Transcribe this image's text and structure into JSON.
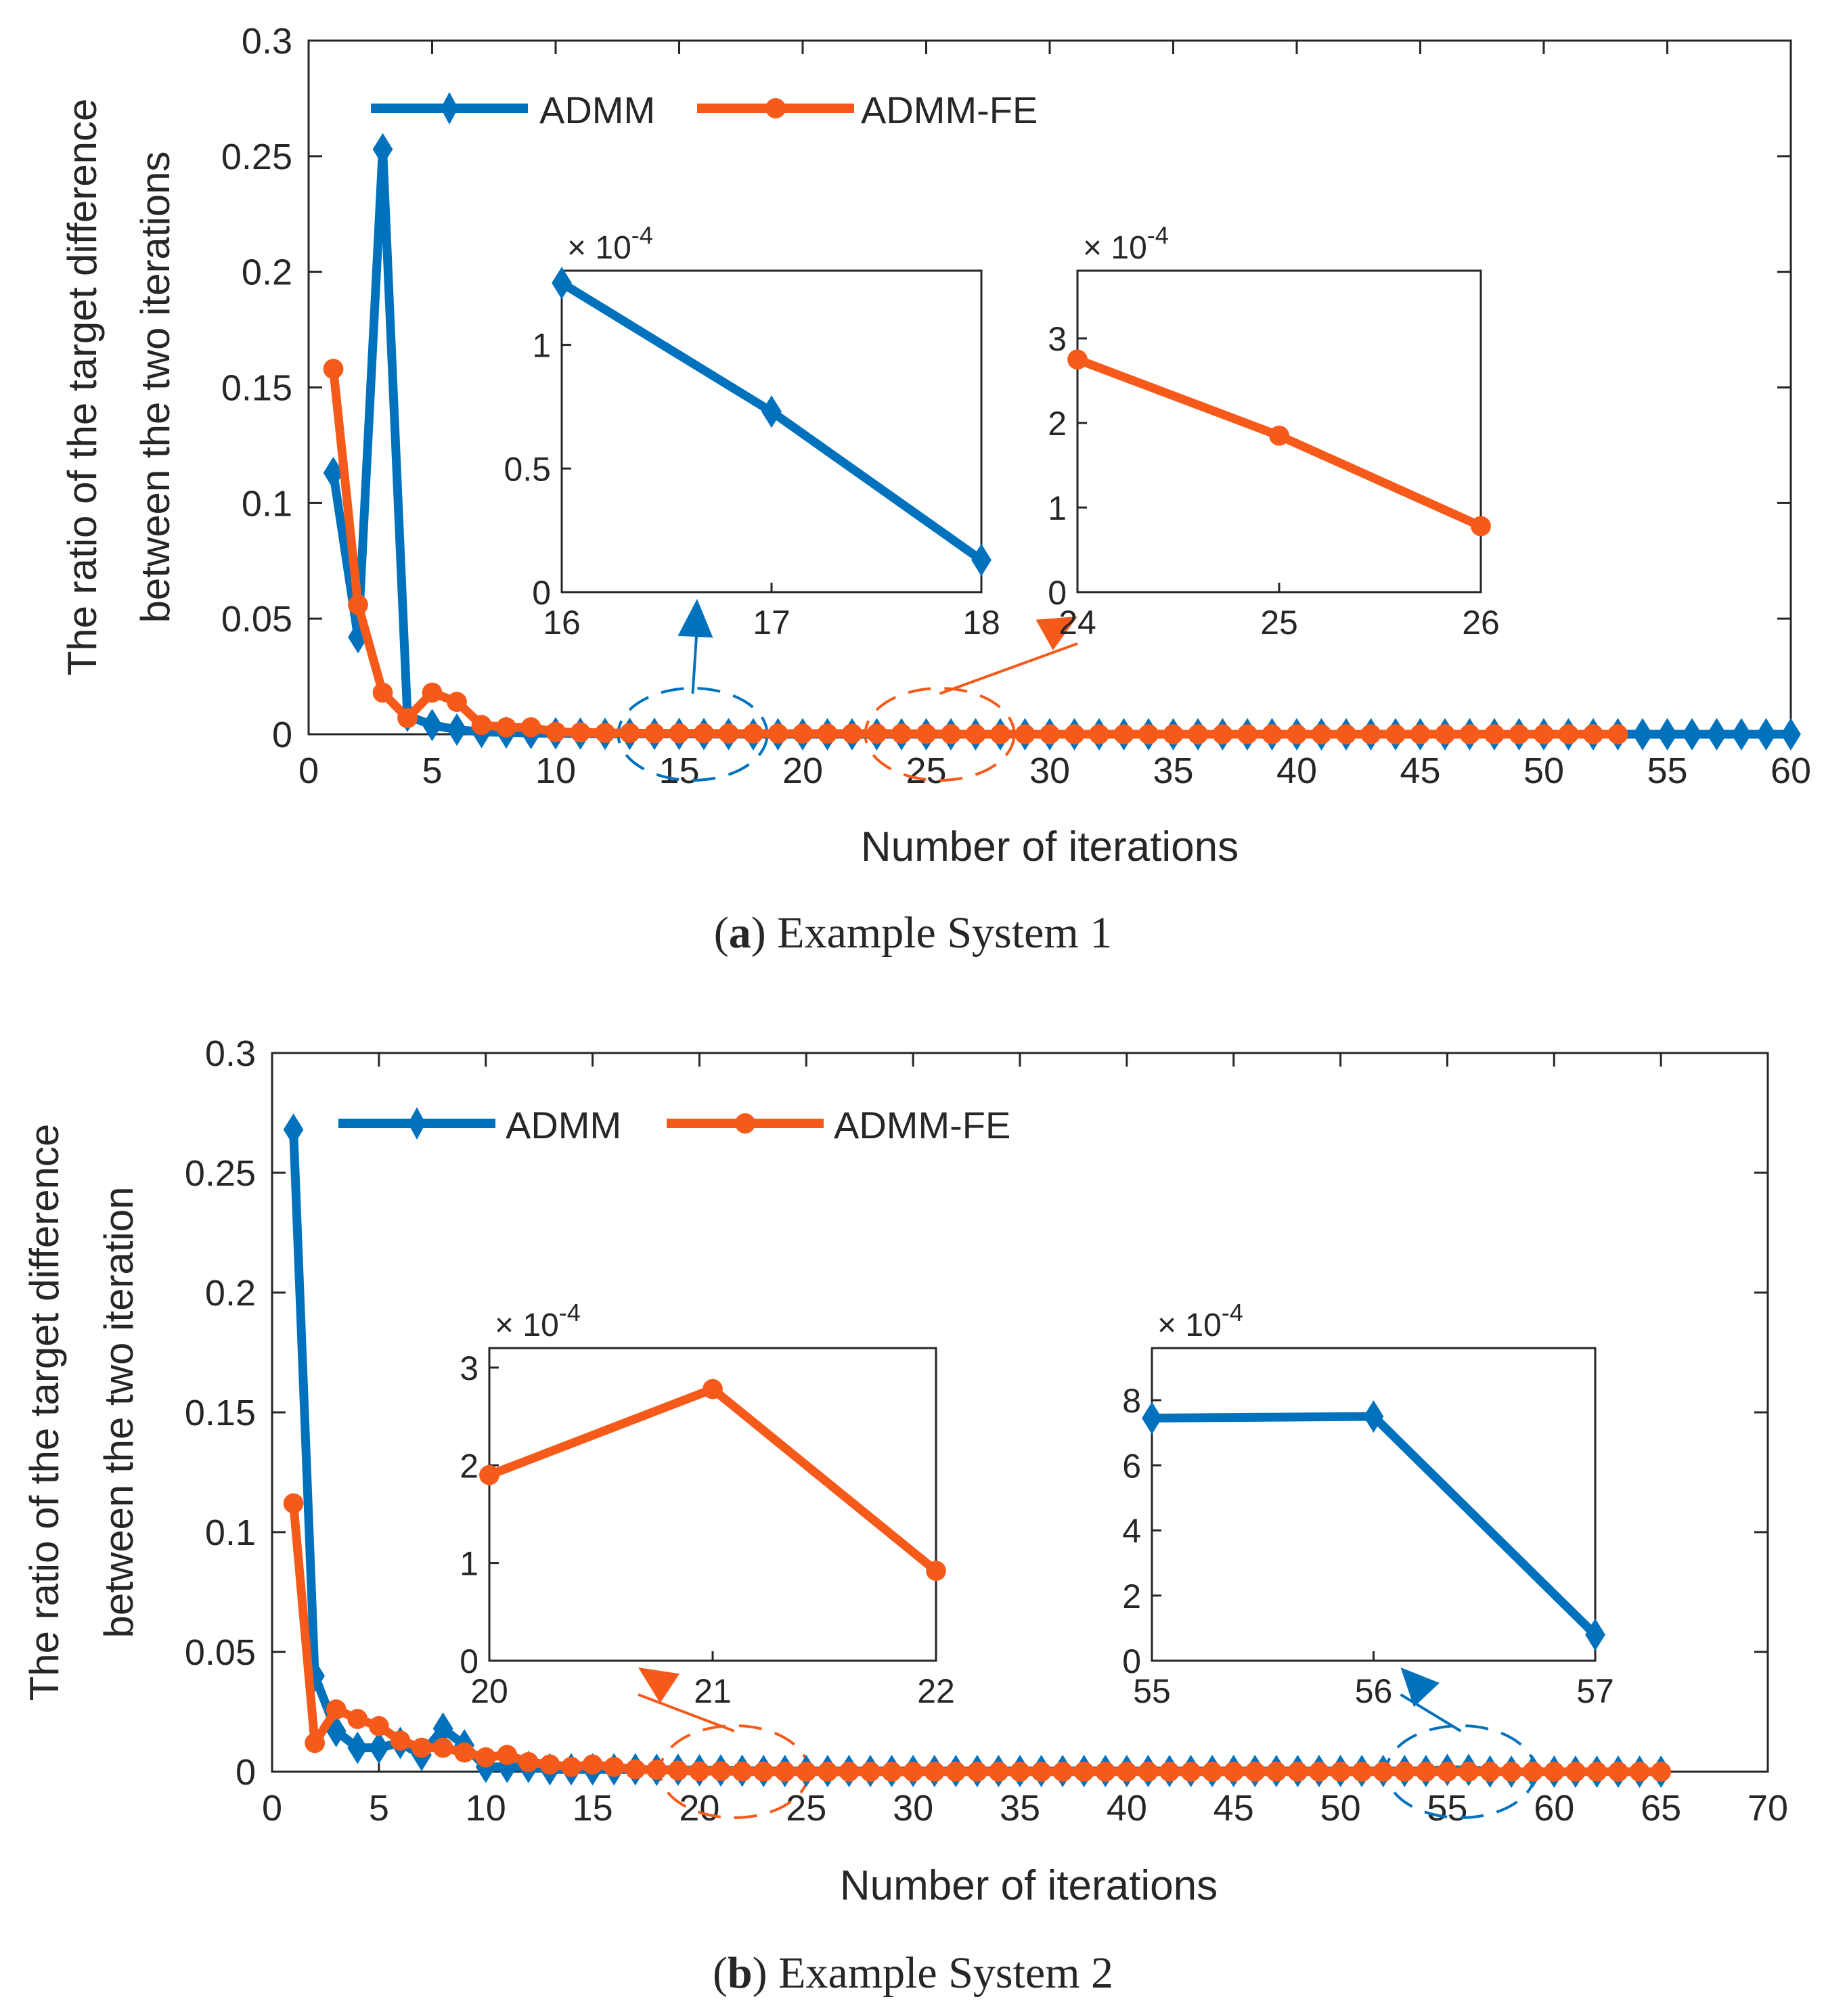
{
  "colors": {
    "admm": "#0072BD",
    "admm_fe": "#F65A1B",
    "axis": "#262626"
  },
  "chart_data": [
    {
      "type": "line",
      "id": "a",
      "caption_label": "a",
      "caption_text": "Example System 1",
      "xlabel": "Number of iterations",
      "ylabel_line1": "The ratio of the target difference",
      "ylabel_line2": "between the two iterations",
      "xlim": [
        0,
        60
      ],
      "ylim": [
        0,
        0.3
      ],
      "xticks": [
        0,
        5,
        10,
        15,
        20,
        25,
        30,
        35,
        40,
        45,
        50,
        55,
        60
      ],
      "yticks": [
        0,
        0.05,
        0.1,
        0.15,
        0.2,
        0.25,
        0.3
      ],
      "ytick_labels": [
        "0",
        "0.05",
        "0.1",
        "0.15",
        "0.2",
        "0.25",
        "0.3"
      ],
      "legend": [
        "ADMM",
        "ADMM-FE"
      ],
      "legend_position": "top-left",
      "series": [
        {
          "name": "ADMM",
          "marker": "diamond",
          "x": [
            1,
            2,
            3,
            4,
            5,
            6,
            7,
            8,
            9,
            10,
            11,
            12,
            13,
            14,
            15,
            16,
            17,
            18,
            19,
            20,
            21,
            22,
            23,
            24,
            25,
            26,
            27,
            28,
            29,
            30,
            31,
            32,
            33,
            34,
            35,
            36,
            37,
            38,
            39,
            40,
            41,
            42,
            43,
            44,
            45,
            46,
            47,
            48,
            49,
            50,
            51,
            52,
            53,
            54,
            55,
            56,
            57,
            58,
            59,
            60
          ],
          "y": [
            0.113,
            0.042,
            0.253,
            0.008,
            0.004,
            0.002,
            0.001,
            0.0008,
            0.0005,
            0.0004,
            0.0003,
            0.0002,
            0.0002,
            0.0002,
            0.00015,
            0.00012,
            7e-05,
            1e-05,
            0,
            0,
            0,
            0,
            0,
            0,
            0,
            0,
            0,
            0,
            0,
            0,
            0,
            0,
            0,
            0,
            0,
            0,
            0,
            0,
            0,
            0,
            0,
            0,
            0,
            0,
            0,
            0,
            0,
            0,
            0,
            0,
            0,
            0,
            0,
            0,
            0,
            0,
            0,
            0,
            0,
            0
          ]
        },
        {
          "name": "ADMM-FE",
          "marker": "circle",
          "x": [
            1,
            2,
            3,
            4,
            5,
            6,
            7,
            8,
            9,
            10,
            11,
            12,
            13,
            14,
            15,
            16,
            17,
            18,
            19,
            20,
            21,
            22,
            23,
            24,
            25,
            26,
            27,
            28,
            29,
            30,
            31,
            32,
            33,
            34,
            35,
            36,
            37,
            38,
            39,
            40,
            41,
            42,
            43,
            44,
            45,
            46,
            47,
            48,
            49,
            50,
            51,
            52,
            53
          ],
          "y": [
            0.158,
            0.056,
            0.018,
            0.007,
            0.018,
            0.014,
            0.004,
            0.003,
            0.003,
            0.001,
            0.0008,
            0.0006,
            0.0005,
            0.0004,
            0.0004,
            0.0004,
            0.0003,
            0.0003,
            0.0003,
            0.0003,
            0.0003,
            0.0003,
            0.0003,
            0.000275,
            0.000185,
            8e-05,
            0,
            0,
            0,
            0,
            0,
            0,
            0,
            0,
            0,
            0,
            0,
            0,
            0,
            0,
            0,
            0,
            0,
            0,
            0,
            0,
            0,
            0,
            0,
            0,
            0,
            0,
            0
          ]
        }
      ],
      "insets": [
        {
          "id": "a-inset1",
          "series": "ADMM",
          "exponent": "× 10",
          "exponent_power": "-4",
          "xlim": [
            16,
            18
          ],
          "ylim": [
            0,
            1.3
          ],
          "xticks": [
            16,
            17,
            18
          ],
          "yticks": [
            0,
            0.5,
            1
          ],
          "ytick_labels": [
            "0",
            "0.5",
            "1"
          ],
          "x": [
            16,
            17,
            18
          ],
          "y": [
            1.25,
            0.73,
            0.13
          ],
          "zoom_from": [
            15,
            0
          ]
        },
        {
          "id": "a-inset2",
          "series": "ADMM-FE",
          "exponent": "× 10",
          "exponent_power": "-4",
          "xlim": [
            24,
            26
          ],
          "ylim": [
            0,
            3.8
          ],
          "xticks": [
            24,
            25,
            26
          ],
          "yticks": [
            0,
            1,
            2,
            3
          ],
          "ytick_labels": [
            "0",
            "1",
            "2",
            "3"
          ],
          "x": [
            24,
            25,
            26
          ],
          "y": [
            2.75,
            1.85,
            0.78
          ],
          "zoom_from": [
            25,
            0
          ]
        }
      ]
    },
    {
      "type": "line",
      "id": "b",
      "caption_label": "b",
      "caption_text": "Example System 2",
      "xlabel": "Number of iterations",
      "ylabel_line1": "The ratio of the target difference",
      "ylabel_line2": "between the two iteration",
      "xlim": [
        0,
        70
      ],
      "ylim": [
        0,
        0.3
      ],
      "xticks": [
        0,
        5,
        10,
        15,
        20,
        25,
        30,
        35,
        40,
        45,
        50,
        55,
        60,
        65,
        70
      ],
      "yticks": [
        0,
        0.05,
        0.1,
        0.15,
        0.2,
        0.25,
        0.3
      ],
      "ytick_labels": [
        "0",
        "0.05",
        "0.1",
        "0.15",
        "0.2",
        "0.25",
        "0.3"
      ],
      "legend": [
        "ADMM",
        "ADMM-FE"
      ],
      "legend_position": "top-left",
      "series": [
        {
          "name": "ADMM",
          "marker": "diamond",
          "x": [
            1,
            2,
            3,
            4,
            5,
            6,
            7,
            8,
            9,
            10,
            11,
            12,
            13,
            14,
            15,
            16,
            17,
            18,
            19,
            20,
            21,
            22,
            23,
            24,
            25,
            26,
            27,
            28,
            29,
            30,
            31,
            32,
            33,
            34,
            35,
            36,
            37,
            38,
            39,
            40,
            41,
            42,
            43,
            44,
            45,
            46,
            47,
            48,
            49,
            50,
            51,
            52,
            53,
            54,
            55,
            56,
            57,
            58,
            59,
            60,
            61,
            62,
            63,
            64,
            65
          ],
          "y": [
            0.268,
            0.04,
            0.017,
            0.01,
            0.01,
            0.012,
            0.007,
            0.018,
            0.011,
            0.002,
            0.002,
            0.002,
            0.001,
            0.001,
            0.001,
            0.001,
            0.001,
            0.0008,
            0.0008,
            0.0006,
            0.0005,
            0.0004,
            0.0003,
            0.0003,
            0.0003,
            0.0003,
            0.0003,
            0.0003,
            0.0003,
            0.0003,
            0.0003,
            0.0003,
            0.0003,
            0.0003,
            0.0003,
            0.0003,
            0.0003,
            0.0003,
            0.0003,
            0.0003,
            0.0003,
            0.0003,
            0.0003,
            0.0003,
            0.0003,
            0.0003,
            0.0003,
            0.0003,
            0.0003,
            0.0003,
            0.0003,
            0.0003,
            0.0003,
            0.0003,
            0.00075,
            0.00075,
            8e-05,
            0,
            0,
            0,
            0,
            0,
            0,
            0,
            0
          ]
        },
        {
          "name": "ADMM-FE",
          "marker": "circle",
          "x": [
            1,
            2,
            3,
            4,
            5,
            6,
            7,
            8,
            9,
            10,
            11,
            12,
            13,
            14,
            15,
            16,
            17,
            18,
            19,
            20,
            21,
            22,
            23,
            24,
            25,
            26,
            27,
            28,
            29,
            30,
            31,
            32,
            33,
            34,
            35,
            36,
            37,
            38,
            39,
            40,
            41,
            42,
            43,
            44,
            45,
            46,
            47,
            48,
            49,
            50,
            51,
            52,
            53,
            54,
            55,
            56,
            57,
            58,
            59,
            60,
            61,
            62,
            63,
            64,
            65
          ],
          "y": [
            0.112,
            0.012,
            0.026,
            0.022,
            0.019,
            0.013,
            0.01,
            0.01,
            0.008,
            0.006,
            0.007,
            0.004,
            0.003,
            0.002,
            0.003,
            0.002,
            0.001,
            0.0008,
            0.0005,
            0.00019,
            0.00028,
            9e-05,
            0,
            0,
            0,
            0,
            0,
            0,
            0,
            0,
            0,
            0,
            0,
            0,
            0,
            0,
            0,
            0,
            0,
            0,
            0,
            0,
            0,
            0,
            0,
            0,
            0,
            0,
            0,
            0,
            0,
            0,
            0,
            0,
            0,
            0,
            0,
            0,
            0,
            0,
            0,
            0,
            0,
            0,
            0
          ]
        }
      ],
      "insets": [
        {
          "id": "b-inset1",
          "series": "ADMM-FE",
          "exponent": "× 10",
          "exponent_power": "-4",
          "xlim": [
            20,
            22
          ],
          "ylim": [
            0,
            3.2
          ],
          "xticks": [
            20,
            21,
            22
          ],
          "yticks": [
            0,
            1,
            2,
            3
          ],
          "ytick_labels": [
            "0",
            "1",
            "2",
            "3"
          ],
          "x": [
            20,
            21,
            22
          ],
          "y": [
            1.9,
            2.78,
            0.92
          ],
          "zoom_from": [
            21,
            0
          ]
        },
        {
          "id": "b-inset2",
          "series": "ADMM",
          "exponent": "× 10",
          "exponent_power": "-4",
          "xlim": [
            55,
            57
          ],
          "ylim": [
            0,
            9.6
          ],
          "xticks": [
            55,
            56,
            57
          ],
          "yticks": [
            0,
            2,
            4,
            6,
            8
          ],
          "ytick_labels": [
            "0",
            "2",
            "4",
            "6",
            "8"
          ],
          "x": [
            55,
            56,
            57
          ],
          "y": [
            7.45,
            7.5,
            0.8
          ],
          "zoom_from": [
            55,
            0
          ]
        }
      ]
    }
  ]
}
